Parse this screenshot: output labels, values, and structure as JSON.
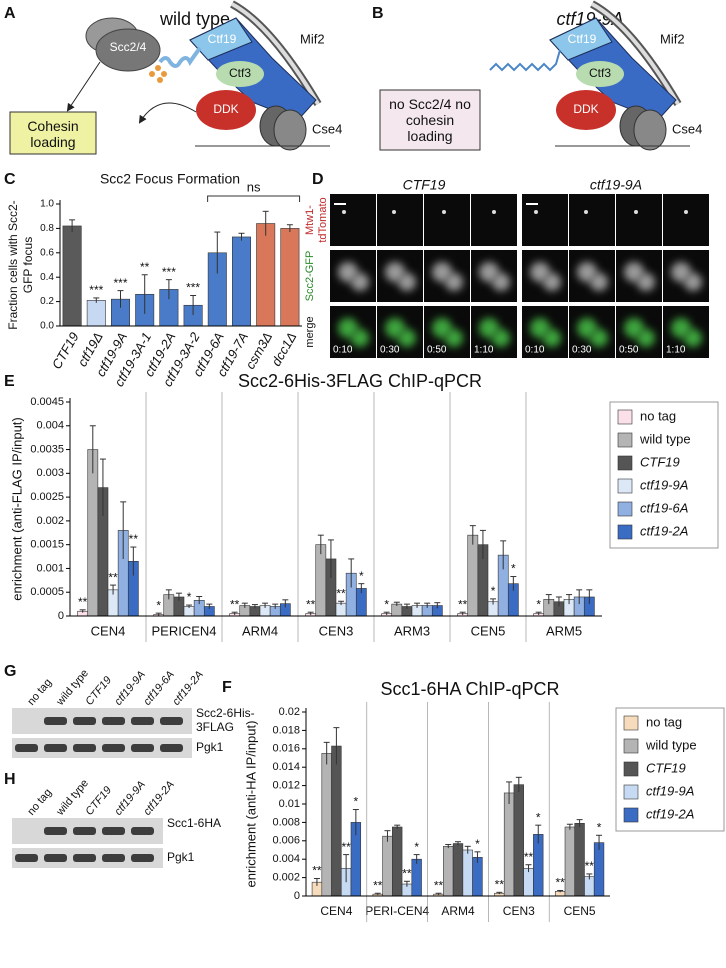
{
  "panel_labels": [
    "A",
    "B",
    "C",
    "D",
    "E",
    "F",
    "G",
    "H"
  ],
  "panel_a": {
    "title": "wild type",
    "labels": [
      "Scc2/4",
      "Ctf19",
      "Ctf3",
      "Mif2",
      "DDK",
      "Cse4"
    ],
    "box": "Cohesin loading"
  },
  "panel_b": {
    "title": "ctf19-9A",
    "labels": [
      "Ctf19",
      "Ctf3",
      "Mif2",
      "DDK",
      "Cse4"
    ],
    "box": "no Scc2/4 no cohesin loading"
  },
  "panel_d": {
    "columns": [
      "CTF19",
      "ctf19-9A"
    ],
    "rows": [
      "Mtw1-tdTomato",
      "Scc2-GFP",
      "merge"
    ],
    "times": [
      "0:10",
      "0:30",
      "0:50",
      "1:10"
    ]
  },
  "panel_g": {
    "lanes": [
      "no tag",
      "wild type",
      "CTF19",
      "ctf19-9A",
      "ctf19-6A",
      "ctf19-2A"
    ],
    "bands": [
      "Scc2-6His-3FLAG",
      "Pgk1"
    ]
  },
  "panel_h": {
    "lanes": [
      "no tag",
      "wild type",
      "CTF19",
      "ctf19-9A",
      "ctf19-2A"
    ],
    "bands": [
      "Scc1-6HA",
      "Pgk1"
    ]
  },
  "chart_data": [
    {
      "type": "bar",
      "title": "Scc2 Focus Formation",
      "y_label": "Fraction cells with Scc2-GFP focus",
      "categories": [
        "CTF19",
        "ctf19Δ",
        "ctf19-9A",
        "ctf19-3A-1",
        "ctf19-2A",
        "ctf19-3A-2",
        "ctf19-6A",
        "ctf19-7A",
        "csm3Δ",
        "dcc1Δ"
      ],
      "values": [
        0.82,
        0.21,
        0.22,
        0.26,
        0.3,
        0.17,
        0.6,
        0.73,
        0.84,
        0.8
      ],
      "errors": [
        0.05,
        0.02,
        0.07,
        0.16,
        0.08,
        0.08,
        0.17,
        0.03,
        0.1,
        0.03
      ],
      "colors": [
        "#5a5a5a",
        "#c6d8f2",
        "#4a7bc8",
        "#4a7bc8",
        "#4a7bc8",
        "#4a7bc8",
        "#4a7bc8",
        "#4a7bc8",
        "#d9775a",
        "#d9775a"
      ],
      "annotations": [
        null,
        "***",
        "***",
        "**",
        "***",
        "***",
        null,
        null,
        null,
        null
      ],
      "bracket_label": "ns",
      "ylim": [
        0,
        1
      ],
      "yticks": [
        {
          "value": 0,
          "label": "0.0"
        },
        0.2,
        0.4,
        0.6,
        0.8,
        {
          "value": 1,
          "label": "1.0"
        }
      ]
    },
    {
      "type": "bar",
      "title": "Scc2-6His-3FLAG ChIP-qPCR",
      "y_label": "enrichment (anti-FLAG IP/input)",
      "categories": [
        "CEN4",
        "PERICEN4",
        "ARM4",
        "CEN3",
        "ARM3",
        "CEN5",
        "ARM5"
      ],
      "series": [
        {
          "name": "no tag",
          "color": "#fbe0ea",
          "values": [
            0.0001,
            3e-05,
            5e-05,
            5e-05,
            5e-05,
            5e-05,
            5e-05
          ],
          "errors": [
            3e-05,
            3e-05,
            3e-05,
            3e-05,
            3e-05,
            3e-05,
            3e-05
          ],
          "annotations": [
            "**",
            "*",
            "**",
            "**",
            "*",
            "**",
            "*"
          ]
        },
        {
          "name": "wild type",
          "color": "#b4b4b4",
          "values": [
            0.0035,
            0.00045,
            0.00022,
            0.0015,
            0.00025,
            0.0017,
            0.00035
          ],
          "errors": [
            0.0005,
            0.0001,
            5e-05,
            0.0002,
            4e-05,
            0.0002,
            0.0001
          ],
          "annotations": [
            null,
            null,
            null,
            null,
            null,
            null,
            null
          ]
        },
        {
          "name": "CTF19",
          "color": "#555555",
          "values": [
            0.0027,
            0.0004,
            0.0002,
            0.0012,
            0.0002,
            0.0015,
            0.0003
          ],
          "errors": [
            0.0006,
            8e-05,
            4e-05,
            0.0004,
            5e-05,
            0.0003,
            0.0001
          ],
          "annotations": [
            null,
            null,
            null,
            null,
            null,
            null,
            null
          ]
        },
        {
          "name": "ctf19-9A",
          "color": "#dde8f7",
          "values": [
            0.00055,
            0.0002,
            0.00022,
            0.00027,
            0.00022,
            0.0003,
            0.00035
          ],
          "errors": [
            0.0001,
            3e-05,
            5e-05,
            4e-05,
            5e-05,
            6e-05,
            0.0001
          ],
          "annotations": [
            "**",
            "*",
            null,
            "**",
            null,
            "*",
            null
          ]
        },
        {
          "name": "ctf19-6A",
          "color": "#8fb0e0",
          "values": [
            0.0018,
            0.00033,
            0.0002,
            0.0009,
            0.00022,
            0.00128,
            0.0004
          ],
          "errors": [
            0.0006,
            8e-05,
            5e-05,
            0.0003,
            5e-05,
            0.0003,
            0.00015
          ],
          "annotations": [
            null,
            null,
            null,
            null,
            null,
            null,
            null
          ]
        },
        {
          "name": "ctf19-2A",
          "color": "#3a6cc4",
          "values": [
            0.00115,
            0.0002,
            0.00026,
            0.00058,
            0.00022,
            0.00068,
            0.0004
          ],
          "errors": [
            0.0003,
            5e-05,
            8e-05,
            0.0001,
            6e-05,
            0.00015,
            0.00015
          ],
          "annotations": [
            "**",
            null,
            null,
            "*",
            null,
            "*",
            null
          ]
        }
      ],
      "ylim": [
        0,
        0.0045
      ],
      "yticks": [
        0,
        0.0005,
        0.001,
        0.0015,
        0.002,
        0.0025,
        0.003,
        0.0035,
        0.004,
        0.0045
      ]
    },
    {
      "type": "bar",
      "title": "Scc1-6HA ChIP-qPCR",
      "y_label": "enrichment (anti-HA IP/input)",
      "categories": [
        "CEN4",
        "PERI-CEN4",
        "ARM4",
        "CEN3",
        "CEN5"
      ],
      "series": [
        {
          "name": "no tag",
          "color": "#f6dcbc",
          "values": [
            0.0015,
            0.0002,
            0.0002,
            0.0003,
            0.0005
          ],
          "errors": [
            0.0004,
            0.0001,
            0.0001,
            0.0001,
            0.0001
          ],
          "annotations": [
            "**",
            "**",
            "**",
            "**",
            "**"
          ]
        },
        {
          "name": "wild type",
          "color": "#b4b4b4",
          "values": [
            0.0155,
            0.0065,
            0.0054,
            0.0112,
            0.0075
          ],
          "errors": [
            0.0012,
            0.0006,
            0.0002,
            0.0012,
            0.0003
          ],
          "annotations": [
            null,
            null,
            null,
            null,
            null
          ]
        },
        {
          "name": "CTF19",
          "color": "#555555",
          "values": [
            0.0163,
            0.0075,
            0.0057,
            0.0121,
            0.0079
          ],
          "errors": [
            0.002,
            0.0002,
            0.0002,
            0.0008,
            0.0004
          ],
          "annotations": [
            null,
            null,
            null,
            null,
            null
          ]
        },
        {
          "name": "ctf19-9A",
          "color": "#c6daf4",
          "values": [
            0.003,
            0.0013,
            0.005,
            0.003,
            0.0021
          ],
          "errors": [
            0.0015,
            0.0003,
            0.0004,
            0.0004,
            0.0003
          ],
          "annotations": [
            "**",
            "**",
            null,
            "**",
            "**"
          ]
        },
        {
          "name": "ctf19-2A",
          "color": "#3a6cc4",
          "values": [
            0.008,
            0.004,
            0.0042,
            0.0067,
            0.0058
          ],
          "errors": [
            0.0014,
            0.0005,
            0.0006,
            0.001,
            0.0008
          ],
          "annotations": [
            "*",
            "*",
            "*",
            "*",
            "*"
          ]
        }
      ],
      "ylim": [
        0,
        0.02
      ],
      "yticks": [
        0,
        0.002,
        0.004,
        0.006,
        0.008,
        0.01,
        0.012,
        0.014,
        0.016,
        0.018,
        0.02
      ]
    }
  ]
}
